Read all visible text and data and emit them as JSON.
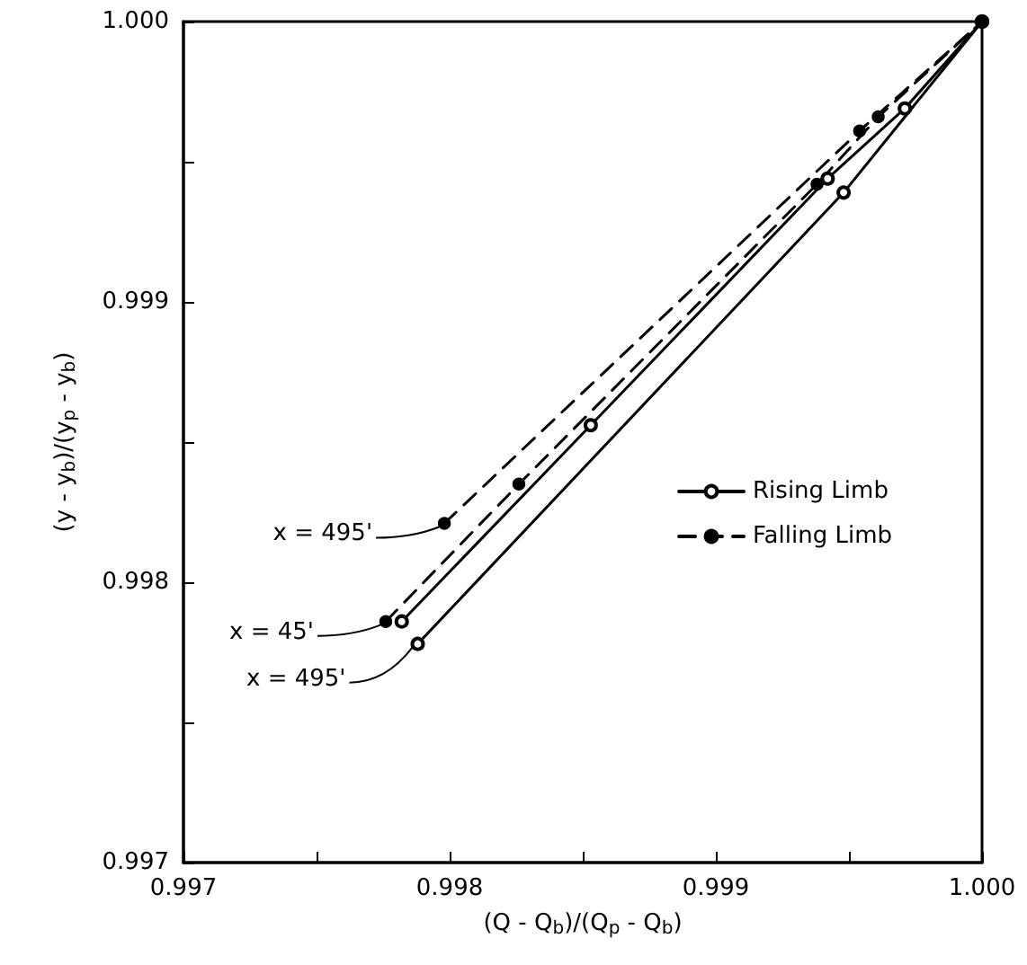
{
  "chart_data": {
    "type": "line",
    "xlabel": "(Q - Q$_{b}$)/(Q$_{p}$ - Q$_{b}$)",
    "ylabel": "(y - y$_{b}$)/(y$_{p}$ - y$_{b}$)",
    "xlim": [
      0.997,
      1.0
    ],
    "ylim": [
      0.997,
      1.0
    ],
    "xticks": [
      {
        "value": 0.997,
        "label": "0.997"
      },
      {
        "value": 0.9975,
        "label": null
      },
      {
        "value": 0.998,
        "label": "0.998"
      },
      {
        "value": 0.9985,
        "label": null
      },
      {
        "value": 0.999,
        "label": "0.999"
      },
      {
        "value": 0.9995,
        "label": null
      },
      {
        "value": 1.0,
        "label": "1.000"
      }
    ],
    "yticks": [
      {
        "value": 0.997,
        "label": "0.997"
      },
      {
        "value": 0.9975,
        "label": null
      },
      {
        "value": 0.998,
        "label": "0.998"
      },
      {
        "value": 0.9985,
        "label": null
      },
      {
        "value": 0.999,
        "label": "0.999"
      },
      {
        "value": 0.9995,
        "label": null
      },
      {
        "value": 1.0,
        "label": "1.000"
      }
    ],
    "grid": false,
    "legend": "right",
    "series": [
      {
        "name": "Rising Limb",
        "color": "#000000",
        "line_style": "solid",
        "marker": "circle",
        "x": [
          0.99788,
          0.99948,
          1.0
        ],
        "values": [
          0.99778,
          0.99939,
          1.0
        ]
      },
      {
        "color": "#000000",
        "line_style": "solid",
        "marker": "circle",
        "x": [
          0.99782,
          0.99853,
          0.99942,
          0.99971,
          1.0
        ],
        "values": [
          0.99786,
          0.99856,
          0.99944,
          0.99969,
          1.0
        ]
      },
      {
        "name": "Falling Limb",
        "color": "#000000",
        "line_style": "dashed",
        "marker": "circle",
        "x": [
          0.99776,
          0.99826,
          0.99938,
          0.99961,
          1.0
        ],
        "values": [
          0.99786,
          0.99835,
          0.99942,
          0.99966,
          1.0
        ]
      },
      {
        "color": "#000000",
        "line_style": "dashed",
        "marker": "circle",
        "x": [
          0.99798,
          0.99954,
          1.0
        ],
        "values": [
          0.99821,
          0.99961,
          1.0
        ]
      }
    ],
    "annotations": [
      {
        "text": "x = 495'",
        "x": 0.99798,
        "y": 0.99821
      },
      {
        "text": "x = 45'",
        "x": 0.99776,
        "y": 0.99786
      },
      {
        "text": "x = 495'",
        "x": 0.99788,
        "y": 0.99778
      }
    ]
  }
}
